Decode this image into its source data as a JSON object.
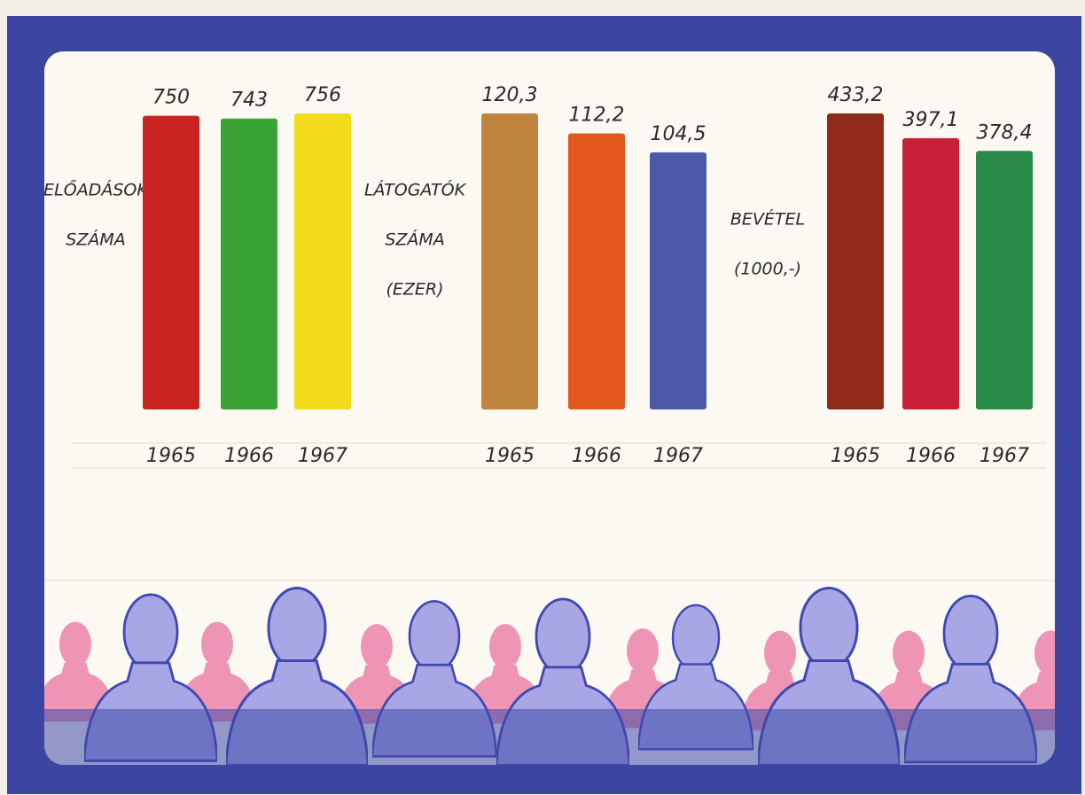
{
  "chart_data": [
    {
      "type": "bar",
      "label": [
        "ELŐADÁSOK",
        "SZÁMA"
      ],
      "categories": [
        "1965",
        "1966",
        "1967"
      ],
      "values": [
        750,
        743,
        756
      ],
      "colors": [
        "#c9241f",
        "#3aa336",
        "#f2dc1c"
      ]
    },
    {
      "type": "bar",
      "label": [
        "LÁTOGATÓK",
        "SZÁMA",
        "(EZER)"
      ],
      "categories": [
        "1965",
        "1966",
        "1967"
      ],
      "values": [
        120.3,
        112.2,
        104.5
      ],
      "value_labels": [
        "120,3",
        "112,2",
        "104,5"
      ],
      "colors": [
        "#c0843f",
        "#e2581f",
        "#4c58a8"
      ]
    },
    {
      "type": "bar",
      "label": [
        "BEVÉTEL",
        "(1000,-)"
      ],
      "categories": [
        "1965",
        "1966",
        "1967"
      ],
      "values": [
        433.2,
        397.1,
        378.4
      ],
      "value_labels": [
        "433,2",
        "397,1",
        "378,4"
      ],
      "colors": [
        "#8e2a17",
        "#c9203a",
        "#2a8a48"
      ]
    }
  ]
}
